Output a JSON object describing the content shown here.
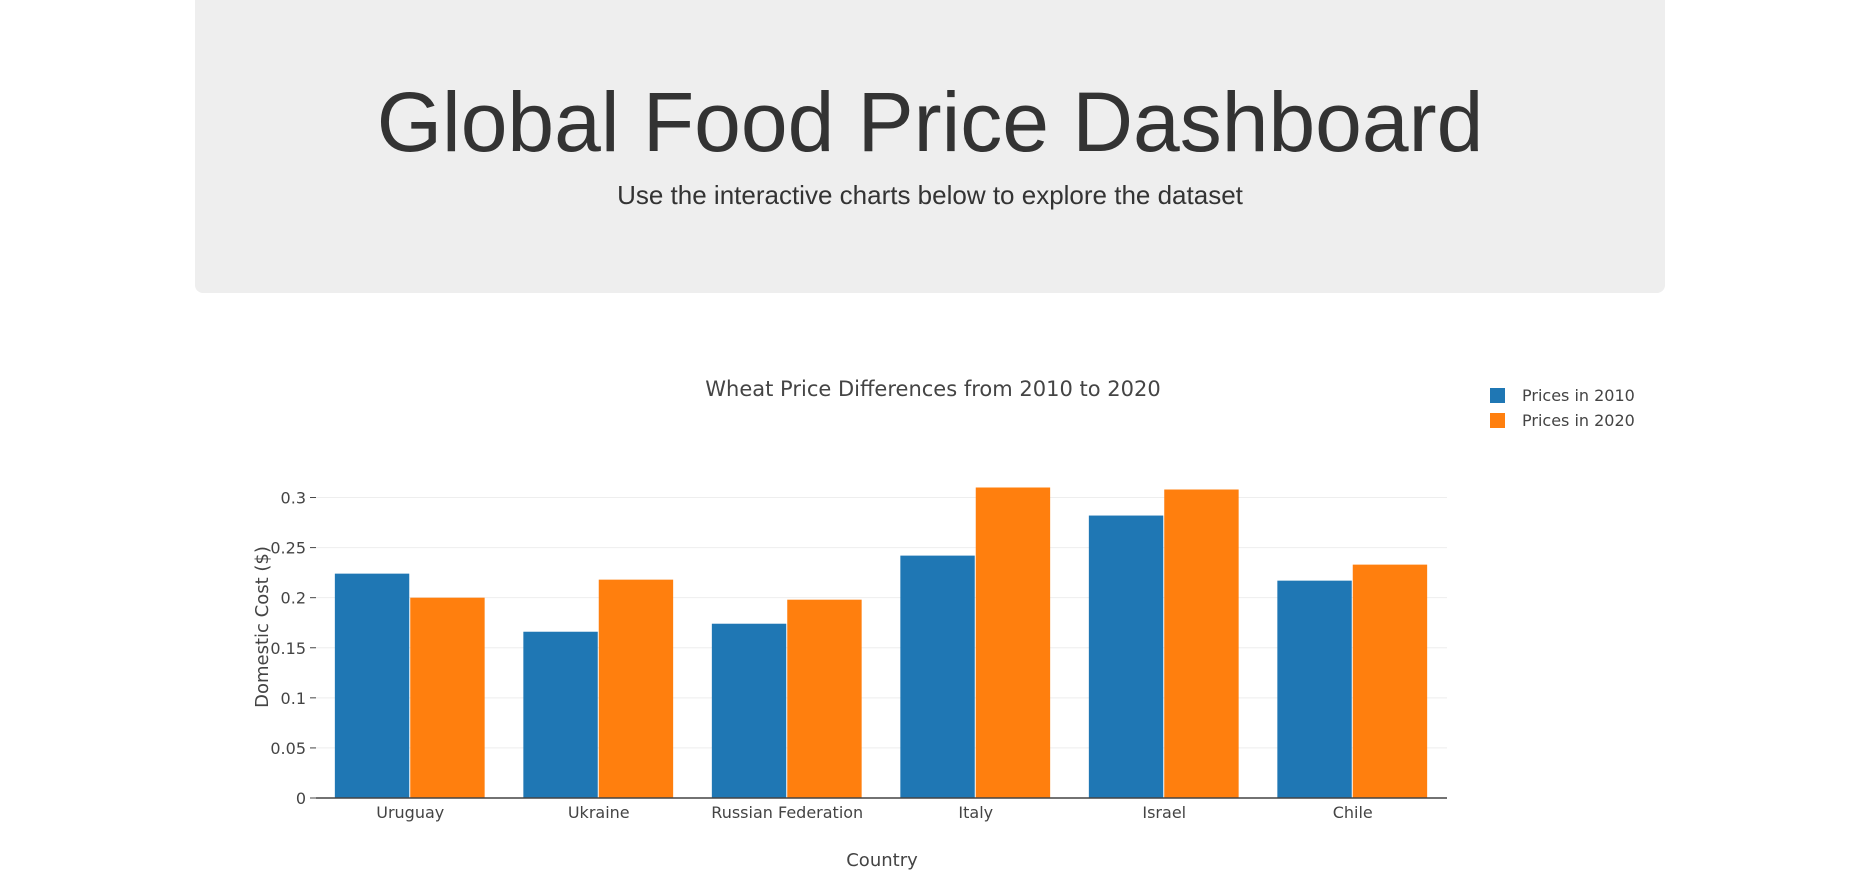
{
  "header": {
    "title": "Global Food Price Dashboard",
    "subtitle": "Use the interactive charts below to explore the dataset"
  },
  "chart_data": {
    "type": "bar",
    "title": "Wheat Price Differences from 2010 to 2020",
    "xlabel": "Country",
    "ylabel": "Domestic Cost ($)",
    "categories": [
      "Uruguay",
      "Ukraine",
      "Russian Federation",
      "Italy",
      "Israel",
      "Chile"
    ],
    "series": [
      {
        "name": "Prices in 2010",
        "color": "#1f77b4",
        "values": [
          0.224,
          0.166,
          0.174,
          0.242,
          0.282,
          0.217
        ]
      },
      {
        "name": "Prices in 2020",
        "color": "#ff7f0e",
        "values": [
          0.2,
          0.218,
          0.198,
          0.31,
          0.308,
          0.233
        ]
      }
    ],
    "ylim": [
      0,
      0.3125
    ],
    "yticks": [
      0,
      0.05,
      0.1,
      0.15,
      0.2,
      0.25,
      0.3
    ],
    "ytick_labels": [
      "0",
      "0.05",
      "0.1",
      "0.15",
      "0.2",
      "0.25",
      "0.3"
    ],
    "grid": true,
    "legend_position": "top-right"
  }
}
